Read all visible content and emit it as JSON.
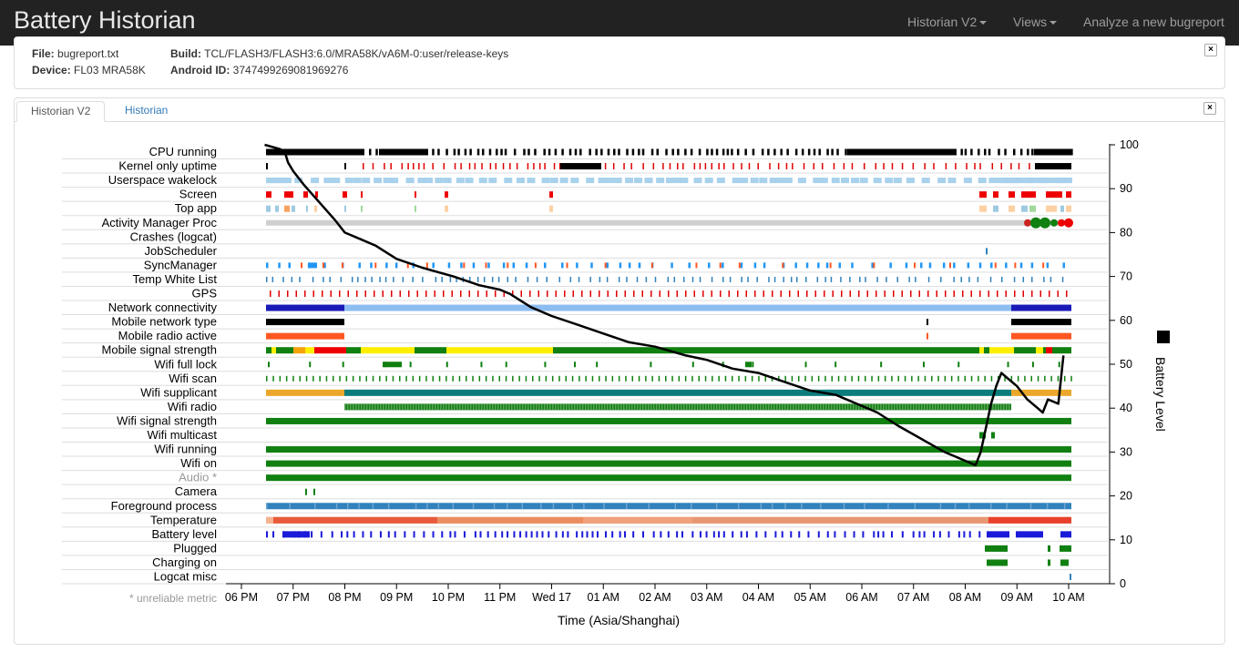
{
  "navbar": {
    "brand": "Battery Historian",
    "items": [
      "Historian V2",
      "Views",
      "Analyze a new bugreport"
    ]
  },
  "info": {
    "file_label": "File:",
    "file_value": "bugreport.txt",
    "device_label": "Device:",
    "device_value": "FL03 MRA58K",
    "build_label": "Build:",
    "build_value": "TCL/FLASH3/FLASH3:6.0/MRA58K/vA6M-0:user/release-keys",
    "android_id_label": "Android ID:",
    "android_id_value": "3747499269081969276"
  },
  "tabs": [
    "Historian V2",
    "Historian"
  ],
  "close_glyph": "×",
  "chart_data": {
    "type": "timeline",
    "rows": [
      {
        "name": "CPU running",
        "color": "#000000"
      },
      {
        "name": "Kernel only uptime",
        "color": "#000000"
      },
      {
        "name": "Userspace wakelock",
        "color": "#9ecae1"
      },
      {
        "name": "Screen",
        "color": "#ff0000"
      },
      {
        "name": "Top app",
        "color": "#9ecae1"
      },
      {
        "name": "Activity Manager Proc",
        "color": "#cccccc"
      },
      {
        "name": "Crashes (logcat)",
        "color": "#000000"
      },
      {
        "name": "JobScheduler",
        "color": "#3182bd"
      },
      {
        "name": "SyncManager",
        "color": "#2196f3"
      },
      {
        "name": "Temp White List",
        "color": "#3182bd"
      },
      {
        "name": "GPS",
        "color": "#ff0000"
      },
      {
        "name": "Network connectivity",
        "color": "#1a1ab8"
      },
      {
        "name": "Mobile network type",
        "color": "#000000"
      },
      {
        "name": "Mobile radio active",
        "color": "#ff5722"
      },
      {
        "name": "Mobile signal strength",
        "color": "#108010"
      },
      {
        "name": "Wifi full lock",
        "color": "#108010"
      },
      {
        "name": "Wifi scan",
        "color": "#108010"
      },
      {
        "name": "Wifi supplicant",
        "color": "#0c7c7c"
      },
      {
        "name": "Wifi radio",
        "color": "#108010"
      },
      {
        "name": "Wifi signal strength",
        "color": "#108010"
      },
      {
        "name": "Wifi multicast",
        "color": "#108010"
      },
      {
        "name": "Wifi running",
        "color": "#108010"
      },
      {
        "name": "Wifi on",
        "color": "#108010"
      },
      {
        "name": "Audio *",
        "color": "#108010",
        "unreliable": true
      },
      {
        "name": "Camera",
        "color": "#108010"
      },
      {
        "name": "Foreground process",
        "color": "#3182bd"
      },
      {
        "name": "Temperature",
        "color": "#e86a3e"
      },
      {
        "name": "Battery level",
        "color": "#1a1ad9"
      },
      {
        "name": "Plugged",
        "color": "#108010"
      },
      {
        "name": "Charging on",
        "color": "#108010"
      },
      {
        "name": "Logcat misc",
        "color": "#3182bd"
      }
    ],
    "x_ticks": [
      "06 PM",
      "07 PM",
      "08 PM",
      "09 PM",
      "10 PM",
      "11 PM",
      "Wed 17",
      "01 AM",
      "02 AM",
      "03 AM",
      "04 AM",
      "05 AM",
      "06 AM",
      "07 AM",
      "08 AM",
      "09 AM",
      "10 AM"
    ],
    "x_label": "Time (Asia/Shanghai)",
    "y_ticks": [
      0,
      10,
      20,
      30,
      40,
      50,
      60,
      70,
      80,
      90,
      100
    ],
    "y_label": "Battery Level",
    "ylim": [
      0,
      100
    ],
    "unreliable_note": "* unreliable metric",
    "battery_level": {
      "hours": [
        0.45,
        0.75,
        0.85,
        0.9,
        1.0,
        1.2,
        1.5,
        1.8,
        2.0,
        2.2,
        2.6,
        3.0,
        3.5,
        3.8,
        4.1,
        4.6,
        5.0,
        5.2,
        5.6,
        6.0,
        6.5,
        7.0,
        7.5,
        8.0,
        8.6,
        9.0,
        9.5,
        10.0,
        10.5,
        11.0,
        11.5,
        12.3,
        12.7,
        13.3,
        13.6,
        14.0,
        14.2,
        14.3,
        14.5,
        14.6,
        14.7,
        14.8,
        15.0,
        15.2,
        15.4,
        15.5,
        15.6,
        15.8,
        15.9
      ],
      "level": [
        100,
        99,
        98,
        96,
        94,
        91,
        87,
        83,
        80,
        79,
        77,
        74,
        72,
        71,
        70,
        68,
        67,
        66,
        63,
        61,
        59,
        57,
        55,
        54,
        52,
        51,
        49,
        48,
        46,
        44,
        43,
        39,
        36,
        32,
        30,
        28,
        27,
        30,
        41,
        45,
        48,
        47,
        45,
        42,
        40,
        39,
        42,
        41,
        52
      ]
    }
  }
}
